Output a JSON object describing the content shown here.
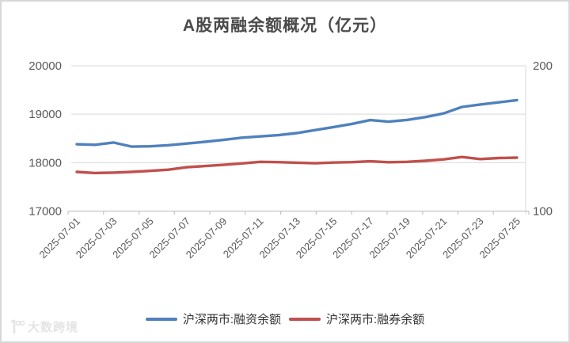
{
  "watermark": {
    "text": "大数跨境",
    "logo": "dashu-kuajing-logo"
  },
  "legend": {
    "items": [
      {
        "label": "沪深两市:融资余额",
        "color": "#4f81bd"
      },
      {
        "label": "沪深两市:融券余额",
        "color": "#c0504d"
      }
    ]
  },
  "chart_data": {
    "type": "line",
    "title": "A股两融余额概况（亿元）",
    "x": [
      "2025-07-01",
      "2025-07-02",
      "2025-07-03",
      "2025-07-04",
      "2025-07-05",
      "2025-07-06",
      "2025-07-07",
      "2025-07-08",
      "2025-07-09",
      "2025-07-10",
      "2025-07-11",
      "2025-07-12",
      "2025-07-13",
      "2025-07-14",
      "2025-07-15",
      "2025-07-16",
      "2025-07-17",
      "2025-07-18",
      "2025-07-19",
      "2025-07-20",
      "2025-07-21",
      "2025-07-22",
      "2025-07-23",
      "2025-07-24",
      "2025-07-25"
    ],
    "x_label_interval": 2,
    "series": [
      {
        "name": "沪深两市:融资余额",
        "axis": "left",
        "color": "#4f81bd",
        "values": [
          18380,
          18368,
          18415,
          18330,
          18338,
          18360,
          18395,
          18430,
          18470,
          18515,
          18542,
          18568,
          18610,
          18672,
          18735,
          18800,
          18878,
          18845,
          18882,
          18940,
          19015,
          19150,
          19200,
          19245,
          19290
        ]
      },
      {
        "name": "沪深两市:融券余额",
        "axis": "right",
        "color": "#c0504d",
        "values": [
          127.0,
          126.2,
          126.5,
          127.0,
          127.7,
          128.5,
          130.2,
          131.0,
          131.8,
          132.8,
          133.9,
          133.7,
          133.3,
          132.9,
          133.4,
          133.7,
          134.3,
          133.6,
          133.9,
          134.6,
          135.6,
          137.2,
          135.8,
          136.5,
          136.8
        ]
      }
    ],
    "left_axis": {
      "min": 17000,
      "max": 20000,
      "ticks": [
        20000,
        19000,
        18000,
        17000
      ]
    },
    "right_axis": {
      "min": 100,
      "max": 200,
      "ticks": [
        200,
        100
      ]
    },
    "grid": true,
    "legend_position": "bottom",
    "colors": {
      "grid": "#d9d9d9",
      "axis_line": "#c6c6c6",
      "tick_text": "#595959"
    }
  }
}
